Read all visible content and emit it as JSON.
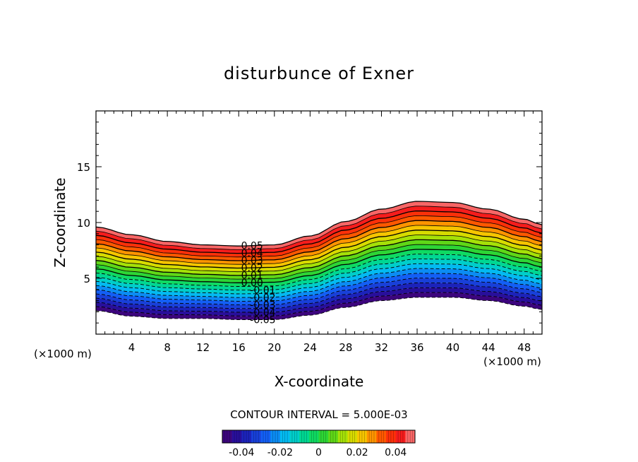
{
  "chart_data": {
    "type": "contour",
    "title": "disturbunce of Exner",
    "xlabel": "X-coordinate",
    "ylabel": "Z-coordinate",
    "x_unit": "(×1000 m)",
    "xlim": [
      0,
      50
    ],
    "ylim": [
      0,
      20
    ],
    "x_ticks": [
      4,
      8,
      12,
      16,
      20,
      24,
      28,
      32,
      36,
      40,
      44,
      48
    ],
    "y_ticks": [
      5,
      10,
      15
    ],
    "contour_interval_label": "CONTOUR INTERVAL = 5.000E-03",
    "contour_interval": 0.005,
    "value_range": [
      -0.05,
      0.05
    ],
    "band": {
      "x": [
        0,
        4,
        8,
        12,
        16,
        20,
        24,
        28,
        32,
        36,
        40,
        44,
        48,
        50
      ],
      "top": [
        9.6,
        8.9,
        8.3,
        8.0,
        7.9,
        8.0,
        8.8,
        10.1,
        11.2,
        11.9,
        11.8,
        11.2,
        10.3,
        9.8
      ],
      "bottom": [
        2.1,
        1.6,
        1.4,
        1.4,
        1.3,
        1.3,
        1.7,
        2.4,
        3.0,
        3.3,
        3.3,
        3.0,
        2.5,
        2.2
      ]
    },
    "contour_labels": [
      "0.05",
      "0.04",
      "0.03",
      "0.02",
      "0.01",
      "0.00",
      "-0.01",
      "-0.02",
      "-0.03",
      "-0.04",
      "-0.05"
    ],
    "colorbar_ticks": [
      "-0.04",
      "-0.02",
      "0",
      "0.02",
      "0.04"
    ]
  }
}
